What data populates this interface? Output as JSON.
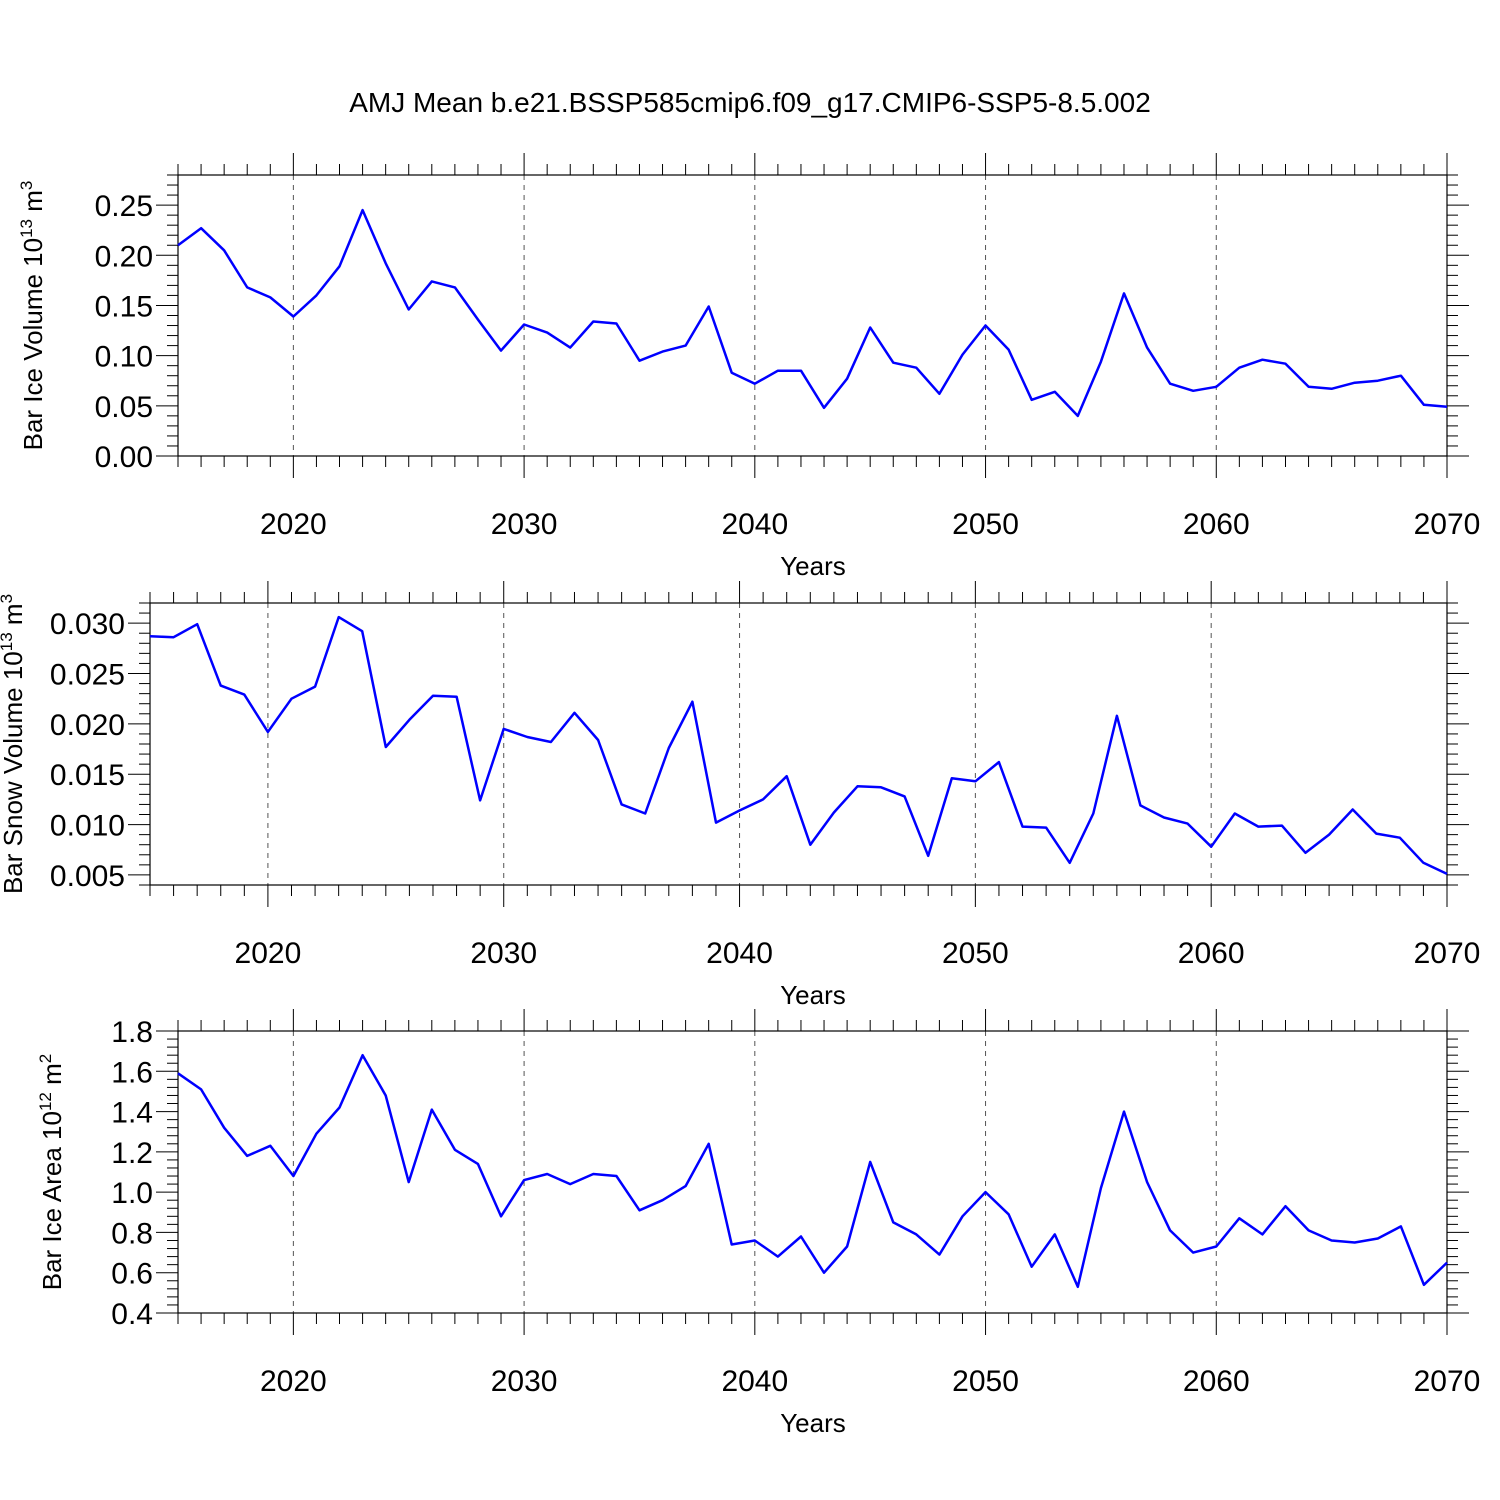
{
  "title": "AMJ Mean b.e21.BSSP585cmip6.f09_g17.CMIP6-SSP5-8.5.002",
  "line_color": "#0000ff",
  "chart_data": [
    {
      "type": "line",
      "ylabel": "Bar Ice Volume 10",
      "ylabel_exp": "13",
      "ylabel_unit": " m",
      "ylabel_unit_exp": "3",
      "xlabel": "Years",
      "xlim": [
        2015,
        2070
      ],
      "ylim": [
        0.0,
        0.28
      ],
      "yticks": [
        "0.00",
        "0.05",
        "0.10",
        "0.15",
        "0.20",
        "0.25"
      ],
      "xticks": [
        "2020",
        "2030",
        "2040",
        "2050",
        "2060",
        "2070"
      ],
      "grid": "vertical dashed at major x ticks",
      "x": [
        2015,
        2016,
        2017,
        2018,
        2019,
        2020,
        2021,
        2022,
        2023,
        2024,
        2025,
        2026,
        2027,
        2028,
        2029,
        2030,
        2031,
        2032,
        2033,
        2034,
        2035,
        2036,
        2037,
        2038,
        2039,
        2040,
        2041,
        2042,
        2043,
        2044,
        2045,
        2046,
        2047,
        2048,
        2049,
        2050,
        2051,
        2052,
        2053,
        2054,
        2055,
        2056,
        2057,
        2058,
        2059,
        2060,
        2061,
        2062,
        2063,
        2064,
        2065,
        2066,
        2067,
        2068,
        2069,
        2070
      ],
      "series": [
        {
          "values": [
            0.21,
            0.227,
            0.205,
            0.168,
            0.158,
            0.139,
            0.16,
            0.189,
            0.245,
            0.192,
            0.146,
            0.174,
            0.168,
            0.136,
            0.105,
            0.131,
            0.123,
            0.108,
            0.134,
            0.132,
            0.095,
            0.104,
            0.11,
            0.149,
            0.083,
            0.072,
            0.085,
            0.085,
            0.048,
            0.077,
            0.128,
            0.093,
            0.088,
            0.062,
            0.101,
            0.13,
            0.106,
            0.056,
            0.064,
            0.04,
            0.094,
            0.162,
            0.108,
            0.072,
            0.065,
            0.069,
            0.088,
            0.096,
            0.092,
            0.069,
            0.067,
            0.073,
            0.075,
            0.08,
            0.051,
            0.049
          ]
        }
      ]
    },
    {
      "type": "line",
      "ylabel": "Bar Snow Volume 10",
      "ylabel_exp": "13",
      "ylabel_unit": " m",
      "ylabel_unit_exp": "3",
      "xlabel": "Years",
      "xlim": [
        2015,
        2070
      ],
      "ylim": [
        0.004,
        0.032
      ],
      "yticks": [
        "0.005",
        "0.010",
        "0.015",
        "0.020",
        "0.025",
        "0.030"
      ],
      "xticks": [
        "2020",
        "2030",
        "2040",
        "2050",
        "2060",
        "2070"
      ],
      "grid": "vertical dashed at major x ticks",
      "x": [
        2015,
        2016,
        2017,
        2018,
        2019,
        2020,
        2021,
        2022,
        2023,
        2024,
        2025,
        2026,
        2027,
        2028,
        2029,
        2030,
        2031,
        2032,
        2033,
        2034,
        2035,
        2036,
        2037,
        2038,
        2039,
        2040,
        2041,
        2042,
        2043,
        2044,
        2045,
        2046,
        2047,
        2048,
        2049,
        2050,
        2051,
        2052,
        2053,
        2054,
        2055,
        2056,
        2057,
        2058,
        2059,
        2060,
        2061,
        2062,
        2063,
        2064,
        2065,
        2066,
        2067,
        2068,
        2069,
        2070
      ],
      "series": [
        {
          "values": [
            0.0287,
            0.0286,
            0.0299,
            0.0238,
            0.0229,
            0.0192,
            0.0225,
            0.0237,
            0.0306,
            0.0292,
            0.0177,
            0.0204,
            0.0228,
            0.0227,
            0.0124,
            0.0195,
            0.0187,
            0.0182,
            0.0211,
            0.0184,
            0.012,
            0.0111,
            0.0176,
            0.0222,
            0.0102,
            0.0114,
            0.0125,
            0.0148,
            0.008,
            0.0112,
            0.0138,
            0.0137,
            0.0128,
            0.0069,
            0.0146,
            0.0143,
            0.0162,
            0.0098,
            0.0097,
            0.0062,
            0.0111,
            0.0208,
            0.0119,
            0.0107,
            0.0101,
            0.0078,
            0.0111,
            0.0098,
            0.0099,
            0.0072,
            0.009,
            0.0115,
            0.0091,
            0.0087,
            0.0062,
            0.0051
          ]
        }
      ]
    },
    {
      "type": "line",
      "ylabel": "Bar Ice Area 10",
      "ylabel_exp": "12",
      "ylabel_unit": " m",
      "ylabel_unit_exp": "2",
      "xlabel": "Years",
      "xlim": [
        2015,
        2070
      ],
      "ylim": [
        0.4,
        1.8
      ],
      "yticks": [
        "0.4",
        "0.6",
        "0.8",
        "1.0",
        "1.2",
        "1.4",
        "1.6",
        "1.8"
      ],
      "xticks": [
        "2020",
        "2030",
        "2040",
        "2050",
        "2060",
        "2070"
      ],
      "grid": "vertical dashed at major x ticks",
      "x": [
        2015,
        2016,
        2017,
        2018,
        2019,
        2020,
        2021,
        2022,
        2023,
        2024,
        2025,
        2026,
        2027,
        2028,
        2029,
        2030,
        2031,
        2032,
        2033,
        2034,
        2035,
        2036,
        2037,
        2038,
        2039,
        2040,
        2041,
        2042,
        2043,
        2044,
        2045,
        2046,
        2047,
        2048,
        2049,
        2050,
        2051,
        2052,
        2053,
        2054,
        2055,
        2056,
        2057,
        2058,
        2059,
        2060,
        2061,
        2062,
        2063,
        2064,
        2065,
        2066,
        2067,
        2068,
        2069,
        2070
      ],
      "series": [
        {
          "values": [
            1.59,
            1.51,
            1.32,
            1.18,
            1.23,
            1.08,
            1.29,
            1.42,
            1.68,
            1.48,
            1.05,
            1.41,
            1.21,
            1.14,
            0.88,
            1.06,
            1.09,
            1.04,
            1.09,
            1.08,
            0.91,
            0.96,
            1.03,
            1.24,
            0.74,
            0.76,
            0.68,
            0.78,
            0.6,
            0.73,
            1.15,
            0.85,
            0.79,
            0.69,
            0.88,
            1.0,
            0.89,
            0.63,
            0.79,
            0.53,
            1.02,
            1.4,
            1.05,
            0.81,
            0.7,
            0.73,
            0.87,
            0.79,
            0.93,
            0.81,
            0.76,
            0.75,
            0.77,
            0.83,
            0.54,
            0.65
          ]
        }
      ]
    }
  ]
}
